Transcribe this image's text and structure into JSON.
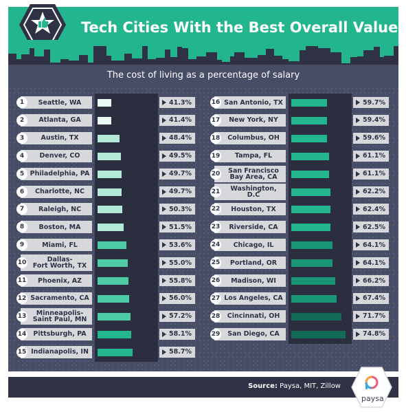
{
  "title": "Tech Cities With the Best Overall Value",
  "subtitle": "The cost of living as a percentage of salary",
  "source_label": "Source:",
  "source_text": "Paysa, MIT, Zillow",
  "brand": "paysa",
  "colors": {
    "accent": "#22b58e",
    "panel": "#484d66",
    "track": "#2b2e3f",
    "footer": "#2e3244"
  },
  "chart_data": {
    "type": "bar",
    "orientation": "horizontal",
    "title": "Tech Cities With the Best Overall Value",
    "subtitle": "The cost of living as a percentage of salary",
    "unit": "%",
    "rows": [
      {
        "rank": "1",
        "city": "Seattle, WA",
        "value": 41.3,
        "label": "41.3%"
      },
      {
        "rank": "2",
        "city": "Atlanta, GA",
        "value": 41.4,
        "label": "41.4%"
      },
      {
        "rank": "3",
        "city": "Austin, TX",
        "value": 48.4,
        "label": "48.4%"
      },
      {
        "rank": "4",
        "city": "Denver, CO",
        "value": 49.5,
        "label": "49.5%"
      },
      {
        "rank": "5",
        "city": "Philadelphia, PA",
        "value": 49.7,
        "label": "49.7%"
      },
      {
        "rank": "6",
        "city": "Charlotte, NC",
        "value": 49.7,
        "label": "49.7%"
      },
      {
        "rank": "7",
        "city": "Raleigh, NC",
        "value": 50.3,
        "label": "50.3%"
      },
      {
        "rank": "8",
        "city": "Boston, MA",
        "value": 51.5,
        "label": "51.5%"
      },
      {
        "rank": "9",
        "city": "Miami, FL",
        "value": 53.6,
        "label": "53.6%"
      },
      {
        "rank": "10",
        "city": "Dallas-\nFort Worth, TX",
        "value": 55.0,
        "label": "55.0%"
      },
      {
        "rank": "11",
        "city": "Phoenix, AZ",
        "value": 55.8,
        "label": "55.8%"
      },
      {
        "rank": "12",
        "city": "Sacramento, CA",
        "value": 56.0,
        "label": "56.0%"
      },
      {
        "rank": "13",
        "city": "Minneapolis-\nSaint Paul, MN",
        "value": 57.2,
        "label": "57.2%"
      },
      {
        "rank": "14",
        "city": "Pittsburgh, PA",
        "value": 58.1,
        "label": "58.1%"
      },
      {
        "rank": "15",
        "city": "Indianapolis, IN",
        "value": 58.7,
        "label": "58.7%"
      },
      {
        "rank": "16",
        "city": "San Antonio, TX",
        "value": 59.7,
        "label": "59.7%"
      },
      {
        "rank": "17",
        "city": "New York, NY",
        "value": 59.4,
        "label": "59.4%"
      },
      {
        "rank": "18",
        "city": "Columbus, OH",
        "value": 59.6,
        "label": "59.6%"
      },
      {
        "rank": "19",
        "city": "Tampa, FL",
        "value": 61.1,
        "label": "61.1%"
      },
      {
        "rank": "20",
        "city": "San Francisco\nBay Area, CA",
        "value": 61.1,
        "label": "61.1%"
      },
      {
        "rank": "21",
        "city": "Washington,\nD.C",
        "value": 62.2,
        "label": "62.2%"
      },
      {
        "rank": "22",
        "city": "Houston, TX",
        "value": 62.4,
        "label": "62.4%"
      },
      {
        "rank": "23",
        "city": "Riverside, CA",
        "value": 62.5,
        "label": "62.5%"
      },
      {
        "rank": "24",
        "city": "Chicago, IL",
        "value": 64.1,
        "label": "64.1%"
      },
      {
        "rank": "25",
        "city": "Portland, OR",
        "value": 64.1,
        "label": "64.1%"
      },
      {
        "rank": "26",
        "city": "Madison, WI",
        "value": 66.2,
        "label": "66.2%"
      },
      {
        "rank": "27",
        "city": "Los Angeles, CA",
        "value": 67.4,
        "label": "67.4%"
      },
      {
        "rank": "28",
        "city": "Cincinnati, OH",
        "value": 71.7,
        "label": "71.7%"
      },
      {
        "rank": "29",
        "city": "San Diego, CA",
        "value": 74.8,
        "label": "74.8%"
      }
    ],
    "bar_color_scale": [
      "#eaf8f3",
      "#b4e8d7",
      "#4ecba4",
      "#22b58e",
      "#1a9576",
      "#126b56"
    ]
  }
}
